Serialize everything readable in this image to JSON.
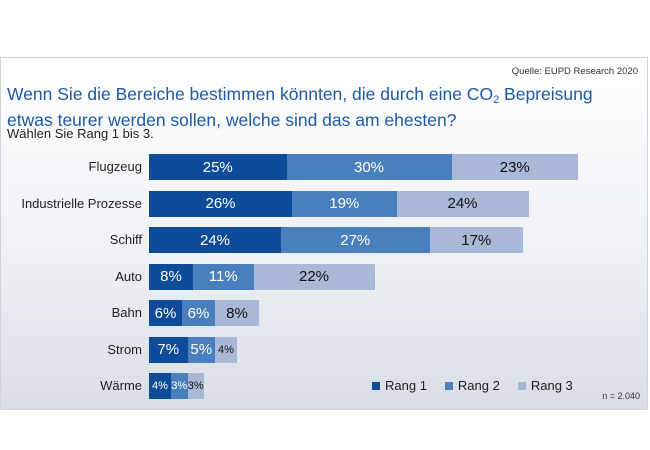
{
  "source": "Quelle: EUPD Research 2020",
  "title": {
    "part1": "Wenn Sie die Bereiche bestimmen könnten, die durch eine CO",
    "sub": "2",
    "part2": " Bepreisung",
    "line2": "etwas teurer werden sollen, welche sind das am ehesten?"
  },
  "subtitle": "Wählen Sie Rang 1 bis 3.",
  "sample_note": "n = 2.040",
  "colors": {
    "rang1": "#0e4c9a",
    "rang2": "#4a7fbd",
    "rang3": "#a9b8d7"
  },
  "chart_data": {
    "type": "bar",
    "orientation": "horizontal",
    "stacked": true,
    "categories": [
      "Flugzeug",
      "Industrielle Prozesse",
      "Schiff",
      "Auto",
      "Bahn",
      "Strom",
      "Wärme"
    ],
    "series": [
      {
        "name": "Rang 1",
        "values": [
          25,
          26,
          24,
          8,
          6,
          7,
          4
        ]
      },
      {
        "name": "Rang 2",
        "values": [
          30,
          19,
          27,
          11,
          6,
          5,
          3
        ]
      },
      {
        "name": "Rang 3",
        "values": [
          23,
          24,
          17,
          22,
          8,
          4,
          3
        ]
      }
    ],
    "unit": "%",
    "legend": "bottom-right",
    "grid": false
  }
}
